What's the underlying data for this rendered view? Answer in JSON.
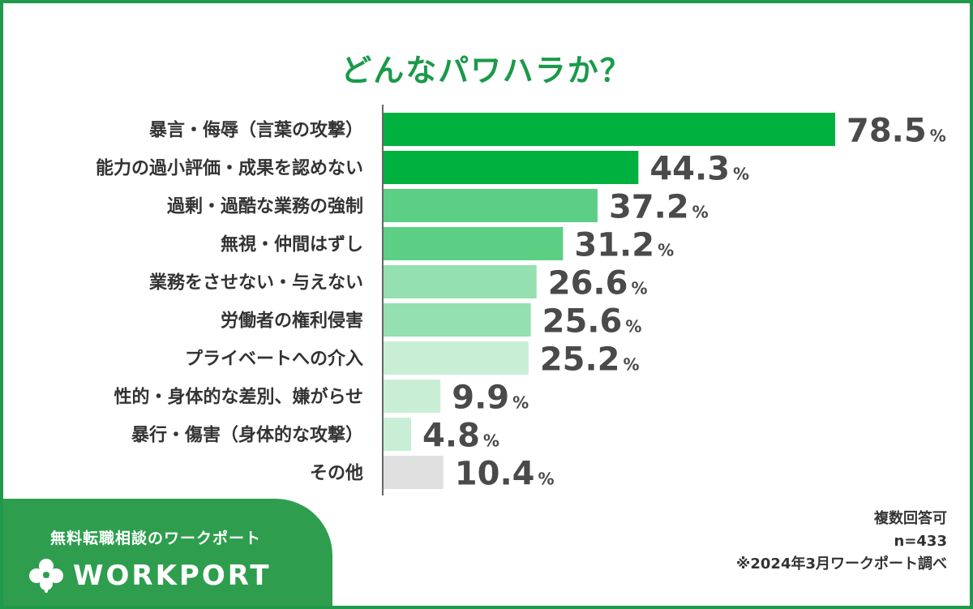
{
  "chart_data": {
    "type": "bar",
    "orientation": "horizontal",
    "title": "どんなパワハラか？",
    "categories": [
      "暴言・侮辱（言葉の攻撃）",
      "能力の過小評価・成果を認めない",
      "過剰・過酷な業務の強制",
      "無視・仲間はずし",
      "業務をさせない・与えない",
      "労働者の権利侵害",
      "プライベートへの介入",
      "性的・身体的な差別、嫌がらせ",
      "暴行・傷害（身体的な攻撃）",
      "その他"
    ],
    "values": [
      78.5,
      44.3,
      37.2,
      31.2,
      26.6,
      25.6,
      25.2,
      9.9,
      4.8,
      10.4
    ],
    "value_labels": [
      "78.5",
      "44.3",
      "37.2",
      "31.2",
      "26.6",
      "25.6",
      "25.2",
      "9.9",
      "4.8",
      "10.4"
    ],
    "unit": "%",
    "colors": [
      "#00b140",
      "#00b140",
      "#5ccf85",
      "#5ccf85",
      "#94e0b0",
      "#94e0b0",
      "#c8efd6",
      "#c8efd6",
      "#c8efd6",
      "#e0e0e0"
    ],
    "xlim": [
      0,
      78.5
    ],
    "grid": false,
    "legend": "none"
  },
  "brand": {
    "tagline": "無料転職相談のワークポート",
    "logo_word": "WORKPORT",
    "logo_icon": "clover-icon",
    "color": "#2e9e4e"
  },
  "notes": {
    "multiple": "複数回答可",
    "n": "n=433",
    "source": "※2024年3月ワークポート調べ"
  },
  "colors": {
    "frame": "#1f9a4a",
    "title": "#1a9a4a"
  }
}
